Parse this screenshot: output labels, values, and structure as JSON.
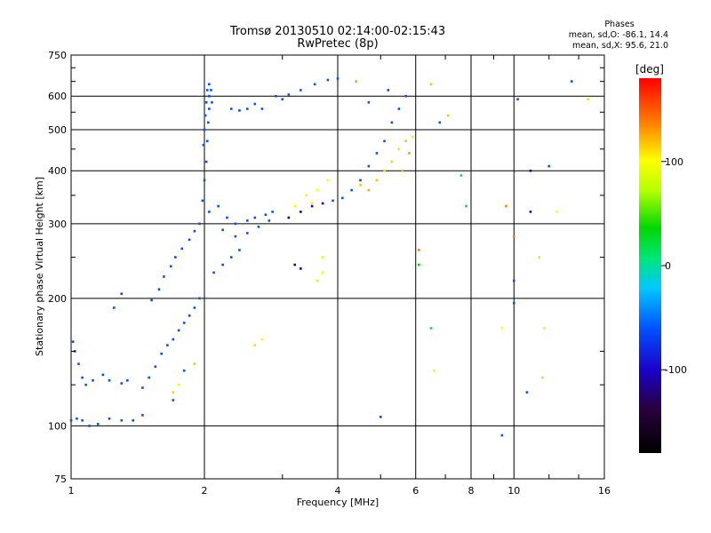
{
  "chart_data": {
    "type": "scatter",
    "title": "Tromsø 20130510 02:14:00-02:15:43",
    "subtitle": "RwPretec (8p)",
    "xlabel": "Frequency [MHz]",
    "ylabel": "Stationary phase Virtual Height [km]",
    "x_scale": "log",
    "y_scale": "log",
    "xlim": [
      1,
      16
    ],
    "ylim": [
      75,
      750
    ],
    "x_ticks": [
      "1",
      "2",
      "4",
      "6",
      "8",
      "10",
      "16"
    ],
    "y_ticks": [
      "75",
      "100",
      "200",
      "300",
      "400",
      "500",
      "600",
      "750"
    ],
    "grid": true,
    "colorbar": {
      "label": "[deg]",
      "range": [
        -180,
        180
      ],
      "ticks": [
        "100",
        "0",
        "-100"
      ],
      "tick_values": [
        100,
        0,
        -100
      ]
    },
    "stats": {
      "heading": "Phases",
      "line_o": "mean, sd,O: -86.1, 14.4",
      "line_x": "mean, sd,X:  95.6, 21.0"
    },
    "series": [
      {
        "points": [
          [
            1.01,
            158,
            -100
          ],
          [
            1.02,
            150,
            -100
          ],
          [
            1.04,
            140,
            -100
          ],
          [
            1.06,
            130,
            -100
          ],
          [
            1.08,
            125,
            -100
          ],
          [
            1.12,
            128,
            -100
          ],
          [
            1.18,
            132,
            -100
          ],
          [
            1.22,
            128,
            -100
          ],
          [
            1.3,
            126,
            -100
          ],
          [
            1.34,
            128,
            -100
          ],
          [
            1.0,
            103,
            -100
          ],
          [
            1.03,
            104,
            -100
          ],
          [
            1.06,
            103,
            -100
          ],
          [
            1.1,
            100,
            -100
          ],
          [
            1.15,
            101,
            -100
          ],
          [
            1.22,
            104,
            -100
          ],
          [
            1.3,
            103,
            -100
          ],
          [
            1.38,
            103,
            -100
          ],
          [
            1.45,
            106,
            -100
          ],
          [
            1.45,
            123,
            -100
          ],
          [
            1.5,
            130,
            -100
          ],
          [
            1.55,
            138,
            -100
          ],
          [
            1.6,
            148,
            -100
          ],
          [
            1.65,
            155,
            -100
          ],
          [
            1.7,
            160,
            -100
          ],
          [
            1.75,
            168,
            -100
          ],
          [
            1.8,
            175,
            -100
          ],
          [
            1.85,
            182,
            -100
          ],
          [
            1.9,
            190,
            -100
          ],
          [
            1.95,
            200,
            -100
          ],
          [
            1.52,
            198,
            -100
          ],
          [
            1.58,
            210,
            -100
          ],
          [
            1.62,
            225,
            -100
          ],
          [
            1.68,
            238,
            -100
          ],
          [
            1.72,
            250,
            -100
          ],
          [
            1.78,
            262,
            -100
          ],
          [
            1.85,
            275,
            -100
          ],
          [
            1.9,
            288,
            -100
          ],
          [
            1.95,
            300,
            -100
          ],
          [
            1.98,
            340,
            -100
          ],
          [
            2.0,
            380,
            -100
          ],
          [
            2.02,
            420,
            -100
          ],
          [
            2.03,
            470,
            -100
          ],
          [
            2.04,
            520,
            -100
          ],
          [
            2.05,
            560,
            -100
          ],
          [
            2.05,
            600,
            -100
          ],
          [
            2.05,
            640,
            -100
          ],
          [
            2.07,
            620,
            -100
          ],
          [
            2.08,
            580,
            -100
          ],
          [
            1.99,
            460,
            -100
          ],
          [
            2.0,
            500,
            -100
          ],
          [
            2.01,
            540,
            -100
          ],
          [
            2.02,
            580,
            -100
          ],
          [
            2.03,
            620,
            -100
          ],
          [
            2.05,
            320,
            -100
          ],
          [
            2.15,
            330,
            -100
          ],
          [
            2.25,
            310,
            -100
          ],
          [
            2.35,
            300,
            -100
          ],
          [
            2.5,
            305,
            -100
          ],
          [
            2.6,
            310,
            -100
          ],
          [
            2.75,
            315,
            -100
          ],
          [
            2.85,
            320,
            -100
          ],
          [
            2.2,
            290,
            -100
          ],
          [
            2.35,
            280,
            -100
          ],
          [
            2.5,
            285,
            -100
          ],
          [
            2.65,
            295,
            -100
          ],
          [
            2.8,
            305,
            -100
          ],
          [
            2.1,
            230,
            -100
          ],
          [
            2.2,
            240,
            -100
          ],
          [
            2.3,
            250,
            -100
          ],
          [
            2.4,
            260,
            -100
          ],
          [
            2.3,
            560,
            -100
          ],
          [
            2.4,
            555,
            -100
          ],
          [
            2.5,
            560,
            -100
          ],
          [
            2.6,
            575,
            -100
          ],
          [
            2.7,
            560,
            -100
          ],
          [
            2.9,
            600,
            -100
          ],
          [
            3.0,
            590,
            -100
          ],
          [
            3.1,
            605,
            -100
          ],
          [
            3.3,
            620,
            -100
          ],
          [
            3.55,
            640,
            -100
          ],
          [
            3.8,
            655,
            -100
          ],
          [
            4.0,
            660,
            -100
          ],
          [
            3.9,
            340,
            -100
          ],
          [
            4.1,
            345,
            -100
          ],
          [
            4.3,
            360,
            -100
          ],
          [
            4.5,
            380,
            -100
          ],
          [
            4.7,
            410,
            -100
          ],
          [
            4.9,
            440,
            -100
          ],
          [
            5.1,
            470,
            -100
          ],
          [
            5.3,
            520,
            -100
          ],
          [
            5.5,
            560,
            -100
          ],
          [
            5.7,
            600,
            -100
          ],
          [
            3.3,
            320,
            -125
          ],
          [
            3.5,
            330,
            -125
          ],
          [
            3.7,
            335,
            -125
          ],
          [
            3.1,
            310,
            -130
          ],
          [
            3.2,
            240,
            -130
          ],
          [
            3.3,
            235,
            -130
          ],
          [
            3.2,
            330,
            105
          ],
          [
            3.4,
            350,
            105
          ],
          [
            3.5,
            335,
            95
          ],
          [
            3.6,
            360,
            100
          ],
          [
            3.7,
            250,
            85
          ],
          [
            3.7,
            230,
            90
          ],
          [
            3.6,
            220,
            80
          ],
          [
            3.8,
            380,
            100
          ],
          [
            4.5,
            370,
            120
          ],
          [
            4.7,
            360,
            130
          ],
          [
            4.9,
            380,
            120
          ],
          [
            5.1,
            400,
            110
          ],
          [
            5.3,
            420,
            115
          ],
          [
            5.5,
            450,
            110
          ],
          [
            5.7,
            470,
            120
          ],
          [
            5.9,
            480,
            105
          ],
          [
            5.8,
            440,
            130
          ],
          [
            5.6,
            400,
            125
          ],
          [
            2.6,
            155,
            110
          ],
          [
            2.7,
            160,
            95
          ],
          [
            1.7,
            120,
            115
          ],
          [
            1.75,
            125,
            95
          ],
          [
            1.9,
            140,
            120
          ],
          [
            6.1,
            240,
            40
          ],
          [
            6.1,
            260,
            140
          ],
          [
            7.8,
            330,
            20
          ],
          [
            9.6,
            330,
            140
          ],
          [
            9.4,
            170,
            100
          ],
          [
            10.0,
            220,
            -100
          ],
          [
            10.0,
            195,
            -100
          ],
          [
            10.0,
            280,
            140
          ],
          [
            10.9,
            400,
            -125
          ],
          [
            10.9,
            320,
            -125
          ],
          [
            11.4,
            250,
            110
          ],
          [
            11.7,
            170,
            90
          ],
          [
            12.0,
            410,
            -100
          ],
          [
            12.5,
            320,
            100
          ],
          [
            1.25,
            190,
            -100
          ],
          [
            1.3,
            205,
            -100
          ],
          [
            1.7,
            115,
            -100
          ],
          [
            1.8,
            135,
            -100
          ],
          [
            5.0,
            105,
            -100
          ],
          [
            6.5,
            170,
            20
          ],
          [
            6.6,
            135,
            90
          ],
          [
            7.6,
            390,
            10
          ],
          [
            9.4,
            95,
            -100
          ],
          [
            10.2,
            590,
            -100
          ],
          [
            13.5,
            650,
            -100
          ],
          [
            6.5,
            640,
            120
          ],
          [
            5.2,
            620,
            -100
          ],
          [
            4.4,
            650,
            130
          ],
          [
            4.7,
            580,
            -100
          ],
          [
            6.8,
            520,
            -100
          ],
          [
            7.1,
            540,
            120
          ],
          [
            10.7,
            120,
            -100
          ],
          [
            11.6,
            130,
            70
          ],
          [
            14.7,
            590,
            110
          ]
        ]
      }
    ]
  }
}
